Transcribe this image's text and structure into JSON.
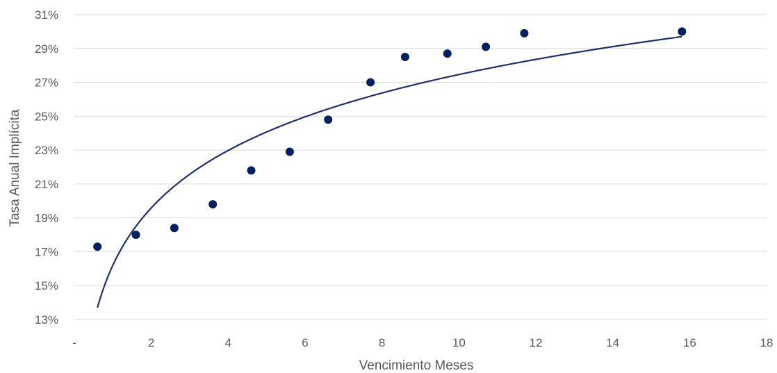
{
  "chart_data": {
    "type": "scatter",
    "title": "",
    "xlabel": "Vencimiento Meses",
    "ylabel": "Tasa Anual Implícita",
    "xlim": [
      0,
      18
    ],
    "ylim": [
      13,
      31
    ],
    "x_ticks": [
      0,
      2,
      4,
      6,
      8,
      10,
      12,
      14,
      16,
      18
    ],
    "x_tick_labels": [
      "-",
      "2",
      "4",
      "6",
      "8",
      "10",
      "12",
      "14",
      "16",
      "18"
    ],
    "y_ticks": [
      13,
      15,
      17,
      19,
      21,
      23,
      25,
      27,
      29,
      31
    ],
    "y_tick_labels": [
      "13%",
      "15%",
      "17%",
      "19%",
      "21%",
      "23%",
      "25%",
      "27%",
      "29%",
      "31%"
    ],
    "grid": "horizontal",
    "legend": "none",
    "series": [
      {
        "kind": "points",
        "color": "#002060",
        "x": [
          0.6,
          1.6,
          2.6,
          3.6,
          4.6,
          5.6,
          6.6,
          7.7,
          8.6,
          9.7,
          10.7,
          11.7,
          15.8
        ],
        "y": [
          17.3,
          18.0,
          18.4,
          19.8,
          21.8,
          22.9,
          24.8,
          27.0,
          28.5,
          28.7,
          29.1,
          29.9,
          30.0
        ]
      },
      {
        "kind": "logarithmic-trendline",
        "color": "#1F2F6B",
        "x_range": [
          0.6,
          15.8
        ],
        "y_start": 13.7,
        "y_end": 29.7
      }
    ]
  }
}
